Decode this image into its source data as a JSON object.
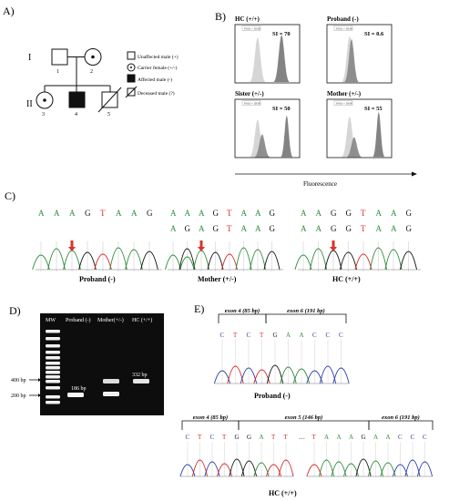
{
  "panelA": {
    "label": "A)",
    "generation_labels": [
      "I",
      "II"
    ],
    "individual_numbers": [
      "1",
      "2",
      "3",
      "4",
      "5"
    ],
    "legend": [
      {
        "icon": "unaffected-male",
        "text": "Unaffected male (+)"
      },
      {
        "icon": "carrier-female",
        "text": "Carrier female (+/-)"
      },
      {
        "icon": "affected-male",
        "text": "Affected male (-)"
      },
      {
        "icon": "deceased-male",
        "text": "Deceased male (?)"
      }
    ]
  },
  "panelB": {
    "label": "B)",
    "histograms": [
      {
        "title": "HC (+/+)",
        "si": "SI = 70",
        "header": "PMA + DHR"
      },
      {
        "title": "Proband (-)",
        "si": "SI = 0.6",
        "header": "PMA + DHR"
      },
      {
        "title": "Sister (+/-)",
        "si": "SI = 50",
        "header": "PMA + DHR"
      },
      {
        "title": "Mother (+/-)",
        "si": "SI = 55",
        "header": "PMA + DHR"
      }
    ],
    "x_axis_label": "Fluorescence"
  },
  "panelC": {
    "label": "C)",
    "chromatograms": [
      {
        "name": "Proband (-)",
        "rows": [
          [
            "A",
            "A",
            "A",
            "G",
            "T",
            "A",
            "A",
            "G"
          ]
        ]
      },
      {
        "name": "Mother (+/-)",
        "rows": [
          [
            "A",
            "A",
            "A",
            "G",
            "T",
            "A",
            "A",
            "G"
          ],
          [
            "A",
            "G",
            "A",
            "G",
            "T",
            "A",
            "A",
            "G"
          ]
        ]
      },
      {
        "name": "HC (+/+)",
        "rows": [
          [
            "A",
            "A",
            "G",
            "G",
            "T",
            "A",
            "A",
            "G"
          ],
          [
            "A",
            "A",
            "G",
            "G",
            "T",
            "A",
            "A",
            "G"
          ]
        ]
      }
    ]
  },
  "panelD": {
    "label": "D)",
    "lanes": [
      "MW",
      "Proband (-)",
      "Mother(+/-)",
      "HC (+/+)"
    ],
    "size_markers": [
      "400 bp",
      "200 bp"
    ],
    "band_labels": [
      "186 bp",
      "332 bp"
    ]
  },
  "panelE": {
    "label": "E)",
    "proband": {
      "exons": [
        "exon 4 (85 bp)",
        "exon 6 (191 bp)"
      ],
      "bases": [
        "C",
        "T",
        "C",
        "T",
        "G",
        "A",
        "A",
        "C",
        "C",
        "C"
      ],
      "caption": "Proband (-)"
    },
    "hc": {
      "exons": [
        "exon 4 (85 bp)",
        "exon 5 (146 bp)",
        "exon 6 (191 bp)"
      ],
      "bases_left": [
        "C",
        "T",
        "C",
        "T",
        "G",
        "G",
        "A",
        "T",
        "T"
      ],
      "bases_right": [
        "T",
        "A",
        "A",
        "A",
        "G",
        "A",
        "A",
        "C",
        "C",
        "C"
      ],
      "caption": "HC (+/+)"
    }
  },
  "colors": {
    "A": "#2e8b3a",
    "C": "#2b3fa8",
    "G": "#111111",
    "T": "#d42a2a",
    "arrow": "#d9342b"
  }
}
